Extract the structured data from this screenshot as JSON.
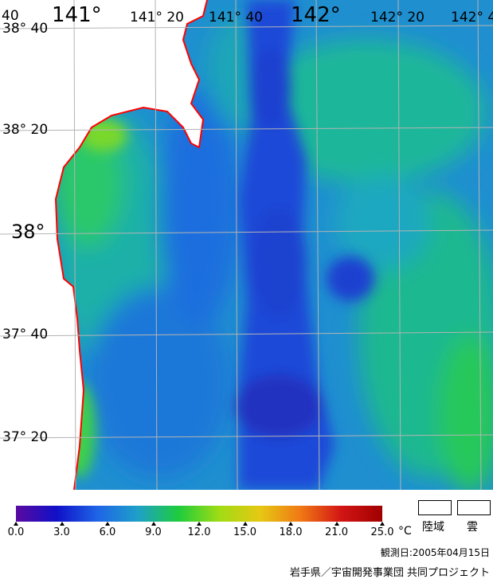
{
  "map": {
    "lon_labels": [
      {
        "text": "141°",
        "kind": "major"
      },
      {
        "text": "141° 20",
        "kind": "minor"
      },
      {
        "text": "141° 40",
        "kind": "minor"
      },
      {
        "text": "142°",
        "kind": "major"
      },
      {
        "text": "142° 20",
        "kind": "minor"
      },
      {
        "text": "142° 4",
        "kind": "minor"
      }
    ],
    "corner_label": "40",
    "lat_labels": [
      {
        "text": "38° 40",
        "kind": "minor"
      },
      {
        "text": "38° 20",
        "kind": "minor"
      },
      {
        "text": "38°",
        "kind": "major"
      },
      {
        "text": "37° 40",
        "kind": "minor"
      },
      {
        "text": "37° 20",
        "kind": "minor"
      }
    ],
    "colors": {
      "land": "#ffffff",
      "coast": "#ff0000",
      "grid": "#b4b4b4"
    }
  },
  "legend": {
    "ticks": [
      "0.0",
      "3.0",
      "6.0",
      "9.0",
      "12.0",
      "15.0",
      "18.0",
      "21.0",
      "25.0"
    ],
    "unit": "°C",
    "land_label": "陸域",
    "cloud_label": "雲",
    "observation_date": "観測日:2005年04月15日",
    "credit": "岩手県／宇宙開発事業団 共同プロジェクト",
    "colorbar_stops": [
      "#5a0aa0",
      "#1010c8",
      "#1e64e6",
      "#1ea0c8",
      "#1ecc3c",
      "#a0dc14",
      "#e6c814",
      "#f07814",
      "#d21414",
      "#a00000"
    ]
  }
}
